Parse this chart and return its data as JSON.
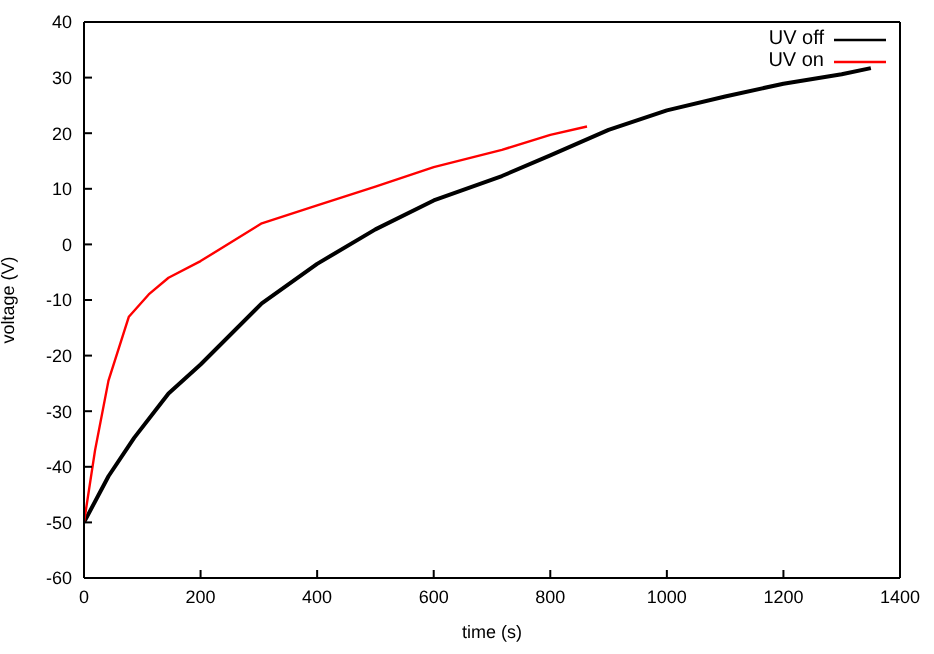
{
  "chart_data": {
    "type": "line",
    "xlabel": "time (s)",
    "ylabel": "voltage (V)",
    "xlim": [
      0,
      1400
    ],
    "xticks": [
      0,
      200,
      400,
      600,
      800,
      1000,
      1200,
      1400
    ],
    "ylim": [
      -60,
      40
    ],
    "yticks": [
      -60,
      -50,
      -40,
      -30,
      -20,
      -10,
      0,
      10,
      20,
      30,
      40
    ],
    "legend": "top right",
    "marker": "none",
    "line_style": "solid",
    "series": [
      {
        "name": "UV off",
        "color": "#000000",
        "x": [
          0,
          42,
          86,
          145,
          200,
          305,
          400,
          500,
          600,
          717,
          800,
          900,
          1000,
          1100,
          1200,
          1300,
          1350
        ],
        "values": [
          -50,
          -41.7,
          -34.8,
          -26.8,
          -21.6,
          -10.6,
          -3.5,
          2.7,
          7.9,
          12.3,
          16,
          20.6,
          24.1,
          26.6,
          28.9,
          30.6,
          31.7
        ]
      },
      {
        "name": "UV on",
        "color": "#ff0000",
        "x": [
          0,
          19,
          42,
          77,
          111,
          145,
          200,
          305,
          400,
          500,
          600,
          717,
          800,
          863
        ],
        "values": [
          -50,
          -37,
          -24.5,
          -13,
          -9,
          -6,
          -3,
          3.8,
          7,
          10.4,
          13.9,
          17,
          19.7,
          21.2
        ]
      }
    ]
  }
}
